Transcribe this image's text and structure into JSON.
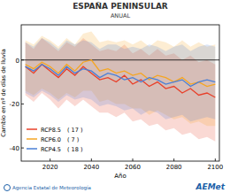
{
  "chart_data": {
    "type": "line",
    "title": "ESPAÑA PENINSULAR",
    "subtitle": "ANUAL",
    "x_label": "Año",
    "y_label": "Cambio en nº de días de lluvia",
    "source": "Agencia Estatal de Meteorología",
    "logo": "AEMet",
    "x": [
      2008,
      2012,
      2016,
      2020,
      2024,
      2028,
      2032,
      2036,
      2040,
      2044,
      2048,
      2052,
      2056,
      2060,
      2064,
      2068,
      2072,
      2076,
      2080,
      2084,
      2088,
      2092,
      2096,
      2100
    ],
    "xlim": [
      2006,
      2102
    ],
    "xticks": [
      2020,
      2040,
      2060,
      2080,
      2100
    ],
    "ylim": [
      -46,
      16
    ],
    "yticks": [
      -40,
      -20,
      0
    ],
    "reference_line": 0,
    "grid": false,
    "legend": "lower left",
    "series": [
      {
        "name": "RCP8.5",
        "count_label": "( 17 )",
        "color": "#e8402a",
        "values": [
          -3,
          -6,
          -2,
          -5,
          -8,
          -4,
          -7,
          -3,
          -6,
          -9,
          -8,
          -10,
          -7,
          -11,
          -9,
          -12,
          -10,
          -13,
          -12,
          -15,
          -13,
          -16,
          -15,
          -17
        ],
        "lower": [
          -16,
          -19,
          -15,
          -18,
          -22,
          -18,
          -21,
          -18,
          -21,
          -24,
          -24,
          -26,
          -24,
          -28,
          -27,
          -30,
          -29,
          -32,
          -31,
          -34,
          -33,
          -36,
          -35,
          -37
        ],
        "upper": [
          8,
          5,
          10,
          7,
          4,
          8,
          6,
          10,
          7,
          4,
          5,
          4,
          7,
          3,
          5,
          2,
          5,
          2,
          3,
          0,
          2,
          -1,
          0,
          -2
        ]
      },
      {
        "name": "RCP6.0",
        "count_label": "( 7 )",
        "color": "#f5a623",
        "values": [
          -2,
          -4,
          -1,
          -3,
          -6,
          -2,
          -5,
          -1,
          0,
          -5,
          -4,
          -6,
          -5,
          -7,
          -6,
          -9,
          -7,
          -8,
          -10,
          -8,
          -11,
          -10,
          -12,
          -11
        ],
        "lower": [
          -14,
          -16,
          -13,
          -15,
          -18,
          -15,
          -17,
          -14,
          -14,
          -19,
          -18,
          -20,
          -20,
          -22,
          -22,
          -25,
          -23,
          -25,
          -27,
          -26,
          -29,
          -28,
          -30,
          -30
        ],
        "upper": [
          9,
          7,
          11,
          9,
          6,
          10,
          7,
          12,
          13,
          8,
          9,
          8,
          9,
          7,
          9,
          6,
          9,
          8,
          6,
          9,
          6,
          8,
          6,
          7
        ]
      },
      {
        "name": "RCP4.5",
        "count_label": "( 18 )",
        "color": "#4a7fd6",
        "values": [
          -3,
          -5,
          -2,
          -4,
          -7,
          -3,
          -6,
          -4,
          -5,
          -8,
          -6,
          -7,
          -9,
          -8,
          -10,
          -8,
          -9,
          -11,
          -10,
          -9,
          -12,
          -10,
          -9,
          -10
        ],
        "lower": [
          -15,
          -17,
          -14,
          -16,
          -19,
          -16,
          -18,
          -17,
          -18,
          -21,
          -20,
          -21,
          -23,
          -22,
          -25,
          -23,
          -24,
          -27,
          -26,
          -25,
          -28,
          -27,
          -26,
          -27
        ],
        "upper": [
          8,
          6,
          10,
          8,
          5,
          9,
          7,
          9,
          8,
          5,
          7,
          7,
          5,
          6,
          5,
          7,
          6,
          4,
          6,
          7,
          4,
          6,
          7,
          6
        ]
      }
    ]
  }
}
